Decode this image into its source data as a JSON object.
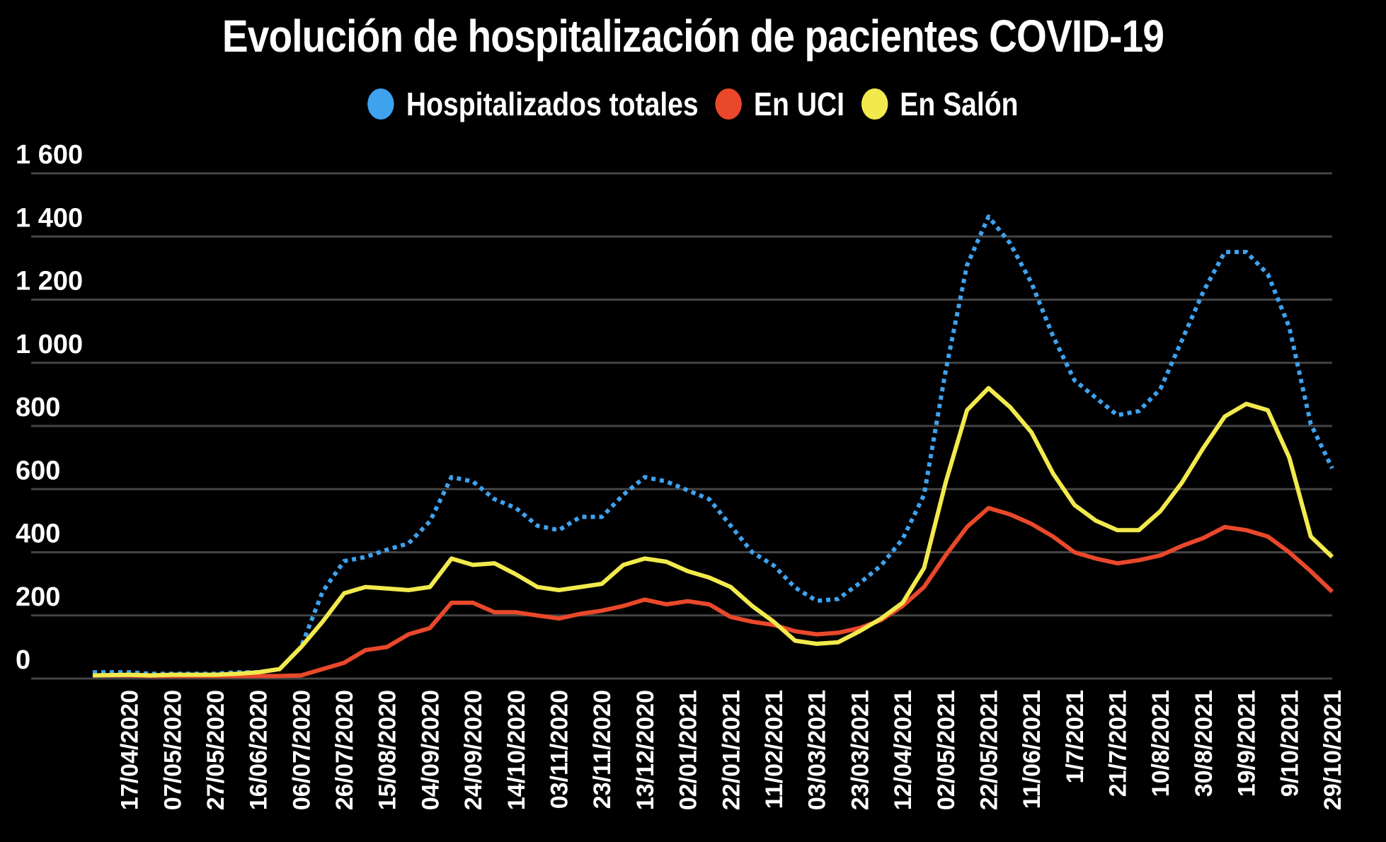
{
  "chart_data": {
    "type": "line",
    "title": "Evolución de hospitalización de pacientes COVID-19",
    "xlabel": "",
    "ylabel": "",
    "ylim": [
      0,
      1600
    ],
    "yticks": [
      "0",
      "200",
      "400",
      "600",
      "800",
      "1 000",
      "1 200",
      "1 400",
      "1 600"
    ],
    "ytick_values": [
      0,
      200,
      400,
      600,
      800,
      1000,
      1200,
      1400,
      1600
    ],
    "xlim": [
      "31/03/2020",
      "29/10/2021"
    ],
    "xticks": [
      "17/04/2020",
      "07/05/2020",
      "27/05/2020",
      "16/06/2020",
      "06/07/2020",
      "26/07/2020",
      "15/08/2020",
      "04/09/2020",
      "24/09/2020",
      "14/10/2020",
      "03/11/2020",
      "23/11/2020",
      "13/12/2020",
      "02/01/2021",
      "22/01/2021",
      "11/02/2021",
      "03/03/2021",
      "23/03/2021",
      "12/04/2021",
      "02/05/2021",
      "22/05/2021",
      "11/06/2021",
      "1/7/2021",
      "21/7/2021",
      "10/8/2021",
      "30/8/2021",
      "19/9/2021",
      "9/10/2021",
      "29/10/2021"
    ],
    "grid": true,
    "legend_position": "top",
    "background": "#000000",
    "x": [
      "31/03/2020",
      "17/04/2020",
      "27/04/2020",
      "07/05/2020",
      "17/05/2020",
      "27/05/2020",
      "06/06/2020",
      "16/06/2020",
      "26/06/2020",
      "06/07/2020",
      "16/07/2020",
      "26/07/2020",
      "05/08/2020",
      "15/08/2020",
      "25/08/2020",
      "04/09/2020",
      "14/09/2020",
      "24/09/2020",
      "04/10/2020",
      "14/10/2020",
      "24/10/2020",
      "03/11/2020",
      "13/11/2020",
      "23/11/2020",
      "03/12/2020",
      "13/12/2020",
      "23/12/2020",
      "02/01/2021",
      "12/01/2021",
      "22/01/2021",
      "01/02/2021",
      "11/02/2021",
      "21/02/2021",
      "03/03/2021",
      "13/03/2021",
      "23/03/2021",
      "02/04/2021",
      "12/04/2021",
      "22/04/2021",
      "02/05/2021",
      "12/05/2021",
      "22/05/2021",
      "01/06/2021",
      "11/06/2021",
      "21/06/2021",
      "01/07/2021",
      "11/07/2021",
      "21/07/2021",
      "31/07/2021",
      "10/08/2021",
      "20/08/2021",
      "30/08/2021",
      "09/09/2021",
      "19/09/2021",
      "29/09/2021",
      "09/10/2021",
      "19/10/2021",
      "29/10/2021"
    ],
    "series": [
      {
        "name": "Hospitalizados totales",
        "color": "#3ea2ef",
        "style": "dotted",
        "values": [
          20,
          20,
          15,
          15,
          15,
          15,
          20,
          20,
          30,
          100,
          275,
          372,
          385,
          408,
          428,
          498,
          638,
          624,
          568,
          540,
          484,
          470,
          512,
          512,
          582,
          638,
          624,
          596,
          568,
          484,
          400,
          358,
          288,
          246,
          252,
          302,
          358,
          442,
          582,
          973,
          1309,
          1463,
          1379,
          1253,
          1085,
          945,
          889,
          834,
          847,
          917,
          1071,
          1225,
          1351,
          1351,
          1281,
          1113,
          806,
          666
        ]
      },
      {
        "name": "En UCI",
        "color": "#e9482b",
        "style": "solid",
        "values": [
          10,
          10,
          8,
          8,
          8,
          8,
          8,
          8,
          8,
          10,
          30,
          50,
          90,
          100,
          140,
          160,
          240,
          240,
          210,
          210,
          200,
          190,
          205,
          215,
          230,
          250,
          235,
          245,
          235,
          195,
          180,
          170,
          150,
          140,
          145,
          160,
          185,
          230,
          290,
          390,
          480,
          540,
          520,
          490,
          450,
          400,
          380,
          365,
          375,
          390,
          420,
          445,
          480,
          470,
          450,
          400,
          340,
          275
        ]
      },
      {
        "name": "En Salón",
        "color": "#f2ea4d",
        "style": "solid",
        "values": [
          10,
          12,
          10,
          12,
          12,
          12,
          15,
          20,
          30,
          100,
          180,
          270,
          290,
          285,
          280,
          290,
          380,
          360,
          365,
          330,
          290,
          280,
          290,
          300,
          360,
          380,
          370,
          340,
          320,
          290,
          230,
          180,
          120,
          110,
          115,
          150,
          190,
          240,
          350,
          620,
          850,
          920,
          860,
          780,
          650,
          550,
          500,
          470,
          470,
          530,
          620,
          730,
          830,
          870,
          850,
          700,
          450,
          385
        ]
      }
    ]
  }
}
